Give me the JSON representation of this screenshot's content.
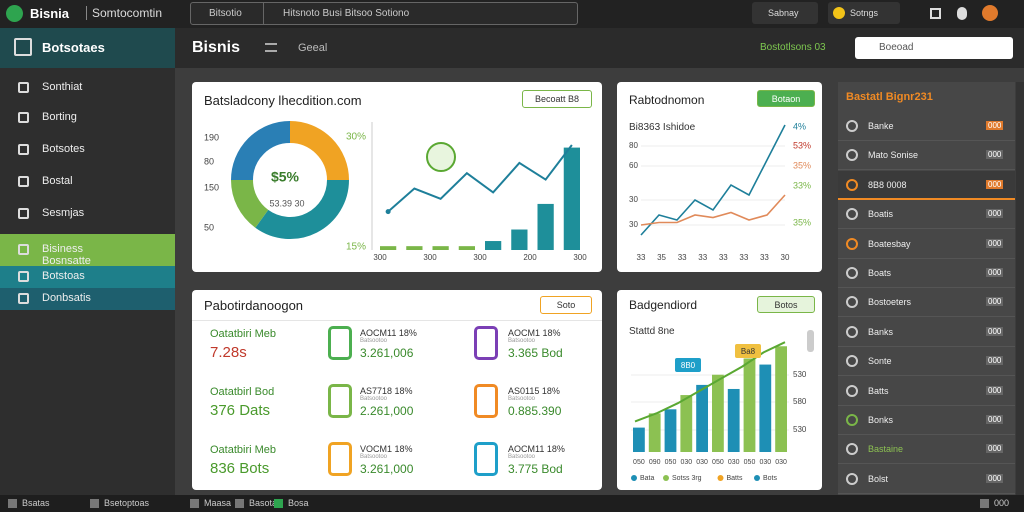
{
  "topbar": {
    "brand": "Bisnia",
    "app": "Somtocomtin",
    "search": "Bitsotio",
    "query": "Hitsnoto Busi Bitsoo Sotiono",
    "button1": "Sabnay",
    "button2": "Sotngs"
  },
  "sidebar": {
    "title": "Botsotaes",
    "items": [
      "Sonthiat",
      "Borting",
      "Botsotes",
      "Bostal",
      "Sesmjas",
      "Bisiness Bosnsatte",
      "Botstoas",
      "Donbsatis"
    ]
  },
  "header": {
    "title": "Bisnis",
    "crumb": "Geeal",
    "status": "Bostotlsons 03",
    "select": "Boeoad"
  },
  "card1": {
    "title": "Batsladcony lhecdition.com",
    "button": "Becoatt B8",
    "donut_center": "$5%",
    "donut_sub": "53.39 30",
    "donut": {
      "values": [
        25,
        35,
        15,
        25
      ],
      "colors": [
        "#f0a323",
        "#1e8f9a",
        "#7ab648",
        "#2a7fb5"
      ]
    },
    "ylabels": [
      "190",
      "80",
      "150",
      "50"
    ],
    "pct_top": "30%",
    "pct_bottom": "15%",
    "xlabels": [
      "300",
      "300",
      "300",
      "200",
      "300"
    ],
    "ylim": [
      0,
      100
    ],
    "bars": [
      3,
      3,
      3,
      3,
      7,
      16,
      36,
      80
    ],
    "bar_colors": [
      "#7ab648",
      "#7ab648",
      "#7ab648",
      "#7ab648",
      "#1e8f9a",
      "#1e8f9a",
      "#1e8f9a",
      "#1e8f9a"
    ],
    "line": [
      30,
      48,
      40,
      60,
      45,
      68,
      55,
      82
    ],
    "line_color": "#1e7f9a"
  },
  "card2": {
    "title": "Rabtodnomon",
    "button": "Botaon",
    "subtitle": "Bi8363 Ishidoe",
    "ylabels": [
      "80",
      "60",
      "30",
      "30"
    ],
    "right_labels": [
      "4%",
      "53%",
      "35%",
      "33%",
      "35%"
    ],
    "xlabels": [
      "33",
      "35",
      "33",
      "33",
      "33",
      "33",
      "33",
      "30"
    ],
    "ylim": [
      0,
      100
    ],
    "series": [
      {
        "color": "#1e7f9a",
        "values": [
          8,
          24,
          20,
          36,
          28,
          48,
          40,
          68,
          96
        ]
      },
      {
        "color": "#e08a5a",
        "values": [
          16,
          18,
          18,
          24,
          22,
          26,
          20,
          24,
          40
        ]
      }
    ]
  },
  "card3": {
    "title": "Pabotirdanoogon",
    "button": "Soto",
    "rows": [
      {
        "name": "Oatatbiri Meb",
        "value": "7.28s",
        "mid_label": "AOCM11 18%",
        "mid_sub": "Batsootoo",
        "mid_value": "3.261,006",
        "right_label": "AOCM1 18%",
        "right_sub": "Batsootoo",
        "right_value": "3.365 Bod"
      },
      {
        "name": "Oatatbirl Bod",
        "value": "376 Dats",
        "mid_label": "AS7718 18%",
        "mid_sub": "Batsootoo",
        "mid_value": "2.261,000",
        "right_label": "AS0115 18%",
        "right_sub": "Batsootoo",
        "right_value": "0.885.390"
      },
      {
        "name": "Oatatbiri Meb",
        "value": "836 Bots",
        "mid_label": "VOCM1 18%",
        "mid_sub": "Batsootoo",
        "mid_value": "3.261,000",
        "right_label": "AOCM11 18%",
        "right_sub": "Batsootoo",
        "right_value": "3.775 Bod"
      }
    ]
  },
  "card4": {
    "title": "Badgendiord",
    "button": "Botos",
    "subtitle": "Stattd 8ne",
    "tag1": "8B0",
    "tag2": "Ba8",
    "ylabels": [
      "530",
      "580",
      "530"
    ],
    "xlabels": [
      "050",
      "090",
      "050",
      "030",
      "030",
      "050",
      "030",
      "050",
      "030",
      "030"
    ],
    "ylim": [
      0,
      120
    ],
    "bars": [
      24,
      38,
      42,
      56,
      66,
      76,
      62,
      92,
      86,
      104
    ],
    "bar_colors": [
      "#1e8fb5",
      "#8cc152",
      "#1e8fb5",
      "#8cc152",
      "#1e8fb5",
      "#8cc152",
      "#1e8fb5",
      "#8cc152",
      "#1e8fb5",
      "#8cc152"
    ],
    "line": [
      30,
      38,
      48,
      60,
      72,
      84,
      98,
      108
    ],
    "line_color": "#5aa832",
    "legend": [
      {
        "name": "Bata",
        "color": "#1e8fb5"
      },
      {
        "name": "Sotss 3rg",
        "color": "#8cc152"
      },
      {
        "name": "Batts",
        "color": "#f0a323"
      },
      {
        "name": "Bots",
        "color": "#1e8fb5"
      }
    ]
  },
  "panel": {
    "title": "Bastatl Bignr231",
    "rows": [
      {
        "label": "Banke",
        "badge": "000"
      },
      {
        "label": "Mato Sonise",
        "badge": "000"
      },
      {
        "label": "8B8   0008",
        "badge": "000"
      },
      {
        "label": "Boatis",
        "badge": "000"
      },
      {
        "label": "Boatesbay",
        "badge": "000"
      },
      {
        "label": "Boats",
        "badge": "000"
      },
      {
        "label": "Bostoeters",
        "badge": "000"
      },
      {
        "label": "Banks",
        "badge": "000"
      },
      {
        "label": "Sonte",
        "badge": "000"
      },
      {
        "label": "Batts",
        "badge": "000"
      },
      {
        "label": "Bonks",
        "badge": "000"
      },
      {
        "label": "Bastaine",
        "badge": "000"
      },
      {
        "label": "Bolst",
        "badge": "000"
      }
    ]
  },
  "taskbar": [
    "Bsatas",
    "Bsetoptoas",
    "Maasa",
    "Basota",
    "Bosa",
    "000"
  ]
}
